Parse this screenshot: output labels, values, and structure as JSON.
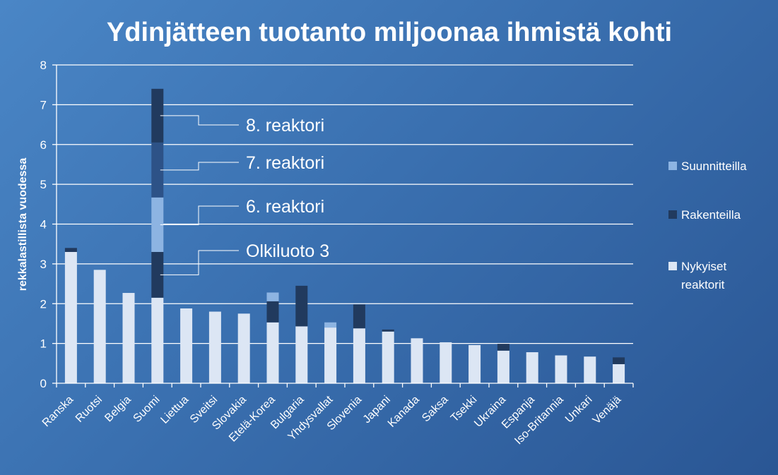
{
  "chart_data": {
    "type": "bar",
    "stacked": true,
    "title": "Ydinjätteen tuotanto miljoonaa ihmistä kohti",
    "ylabel": "rekkalastillista vuodessa",
    "xlabel": "",
    "ylim": [
      0,
      8
    ],
    "yticks": [
      0,
      1,
      2,
      3,
      4,
      5,
      6,
      7,
      8
    ],
    "grid": true,
    "legend_position": "right",
    "categories": [
      "Ranska",
      "Ruotsi",
      "Belgia",
      "Suomi",
      "Liettua",
      "Sveitsi",
      "Slovakia",
      "Etelä-Korea",
      "Bulgaria",
      "Yhdysvallat",
      "Slovenia",
      "Japani",
      "Kanada",
      "Saksa",
      "Tsekki",
      "Ukraina",
      "Espanja",
      "Iso-Britannia",
      "Unkari",
      "Venäjä"
    ],
    "series": [
      {
        "name": "Nykyiset reaktorit",
        "color": "#dce6f4",
        "values": [
          3.3,
          2.85,
          2.27,
          2.15,
          1.88,
          1.8,
          1.75,
          1.53,
          1.43,
          1.4,
          1.38,
          1.3,
          1.13,
          1.03,
          0.96,
          0.82,
          0.78,
          0.7,
          0.67,
          0.48
        ]
      },
      {
        "name": "Rakenteilla",
        "color": "#213a5e",
        "values": [
          0.1,
          0,
          0,
          1.15,
          0,
          0,
          0,
          0.53,
          1.02,
          0,
          0.6,
          0.05,
          0,
          0,
          0,
          0.17,
          0,
          0,
          0,
          0.17
        ]
      },
      {
        "name": "Suunnitteilla",
        "color": "#8db4e2",
        "values": [
          0,
          0,
          0,
          0,
          0,
          0,
          0,
          0.22,
          0,
          0.13,
          0,
          0,
          0,
          0,
          0,
          0,
          0,
          0,
          0,
          0
        ]
      }
    ],
    "suomi_segments": [
      {
        "label": "Olkiluoto 3",
        "bottom": 2.15,
        "top": 3.3,
        "color": "#213a5e"
      },
      {
        "label": "6. reaktori",
        "bottom": 3.3,
        "top": 4.67,
        "color": "#8db4e2"
      },
      {
        "label": "7. reaktori",
        "bottom": 4.67,
        "top": 6.05,
        "color": "#2d5287"
      },
      {
        "label": "8. reaktori",
        "bottom": 6.05,
        "top": 7.4,
        "color": "#213a5e"
      }
    ],
    "legend": [
      "Suunnitteilla",
      "Rakenteilla",
      "Nykyiset reaktorit"
    ]
  }
}
